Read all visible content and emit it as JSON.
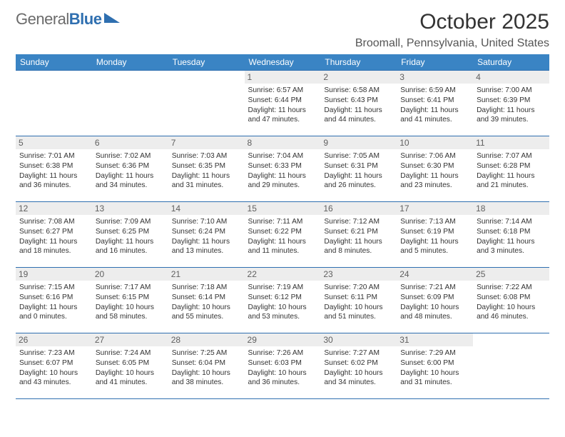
{
  "brand": {
    "word1": "General",
    "word2": "Blue"
  },
  "title": "October 2025",
  "location": "Broomall, Pennsylvania, United States",
  "colors": {
    "header_bg": "#3a84c4",
    "border": "#2f6fb0",
    "dayband": "#ededed"
  },
  "day_headers": [
    "Sunday",
    "Monday",
    "Tuesday",
    "Wednesday",
    "Thursday",
    "Friday",
    "Saturday"
  ],
  "weeks": [
    [
      null,
      null,
      null,
      {
        "n": "1",
        "sr": "6:57 AM",
        "ss": "6:44 PM",
        "dl": "11 hours and 47 minutes."
      },
      {
        "n": "2",
        "sr": "6:58 AM",
        "ss": "6:43 PM",
        "dl": "11 hours and 44 minutes."
      },
      {
        "n": "3",
        "sr": "6:59 AM",
        "ss": "6:41 PM",
        "dl": "11 hours and 41 minutes."
      },
      {
        "n": "4",
        "sr": "7:00 AM",
        "ss": "6:39 PM",
        "dl": "11 hours and 39 minutes."
      }
    ],
    [
      {
        "n": "5",
        "sr": "7:01 AM",
        "ss": "6:38 PM",
        "dl": "11 hours and 36 minutes."
      },
      {
        "n": "6",
        "sr": "7:02 AM",
        "ss": "6:36 PM",
        "dl": "11 hours and 34 minutes."
      },
      {
        "n": "7",
        "sr": "7:03 AM",
        "ss": "6:35 PM",
        "dl": "11 hours and 31 minutes."
      },
      {
        "n": "8",
        "sr": "7:04 AM",
        "ss": "6:33 PM",
        "dl": "11 hours and 29 minutes."
      },
      {
        "n": "9",
        "sr": "7:05 AM",
        "ss": "6:31 PM",
        "dl": "11 hours and 26 minutes."
      },
      {
        "n": "10",
        "sr": "7:06 AM",
        "ss": "6:30 PM",
        "dl": "11 hours and 23 minutes."
      },
      {
        "n": "11",
        "sr": "7:07 AM",
        "ss": "6:28 PM",
        "dl": "11 hours and 21 minutes."
      }
    ],
    [
      {
        "n": "12",
        "sr": "7:08 AM",
        "ss": "6:27 PM",
        "dl": "11 hours and 18 minutes."
      },
      {
        "n": "13",
        "sr": "7:09 AM",
        "ss": "6:25 PM",
        "dl": "11 hours and 16 minutes."
      },
      {
        "n": "14",
        "sr": "7:10 AM",
        "ss": "6:24 PM",
        "dl": "11 hours and 13 minutes."
      },
      {
        "n": "15",
        "sr": "7:11 AM",
        "ss": "6:22 PM",
        "dl": "11 hours and 11 minutes."
      },
      {
        "n": "16",
        "sr": "7:12 AM",
        "ss": "6:21 PM",
        "dl": "11 hours and 8 minutes."
      },
      {
        "n": "17",
        "sr": "7:13 AM",
        "ss": "6:19 PM",
        "dl": "11 hours and 5 minutes."
      },
      {
        "n": "18",
        "sr": "7:14 AM",
        "ss": "6:18 PM",
        "dl": "11 hours and 3 minutes."
      }
    ],
    [
      {
        "n": "19",
        "sr": "7:15 AM",
        "ss": "6:16 PM",
        "dl": "11 hours and 0 minutes."
      },
      {
        "n": "20",
        "sr": "7:17 AM",
        "ss": "6:15 PM",
        "dl": "10 hours and 58 minutes."
      },
      {
        "n": "21",
        "sr": "7:18 AM",
        "ss": "6:14 PM",
        "dl": "10 hours and 55 minutes."
      },
      {
        "n": "22",
        "sr": "7:19 AM",
        "ss": "6:12 PM",
        "dl": "10 hours and 53 minutes."
      },
      {
        "n": "23",
        "sr": "7:20 AM",
        "ss": "6:11 PM",
        "dl": "10 hours and 51 minutes."
      },
      {
        "n": "24",
        "sr": "7:21 AM",
        "ss": "6:09 PM",
        "dl": "10 hours and 48 minutes."
      },
      {
        "n": "25",
        "sr": "7:22 AM",
        "ss": "6:08 PM",
        "dl": "10 hours and 46 minutes."
      }
    ],
    [
      {
        "n": "26",
        "sr": "7:23 AM",
        "ss": "6:07 PM",
        "dl": "10 hours and 43 minutes."
      },
      {
        "n": "27",
        "sr": "7:24 AM",
        "ss": "6:05 PM",
        "dl": "10 hours and 41 minutes."
      },
      {
        "n": "28",
        "sr": "7:25 AM",
        "ss": "6:04 PM",
        "dl": "10 hours and 38 minutes."
      },
      {
        "n": "29",
        "sr": "7:26 AM",
        "ss": "6:03 PM",
        "dl": "10 hours and 36 minutes."
      },
      {
        "n": "30",
        "sr": "7:27 AM",
        "ss": "6:02 PM",
        "dl": "10 hours and 34 minutes."
      },
      {
        "n": "31",
        "sr": "7:29 AM",
        "ss": "6:00 PM",
        "dl": "10 hours and 31 minutes."
      },
      null
    ]
  ],
  "labels": {
    "sunrise": "Sunrise:",
    "sunset": "Sunset:",
    "daylight": "Daylight:"
  }
}
